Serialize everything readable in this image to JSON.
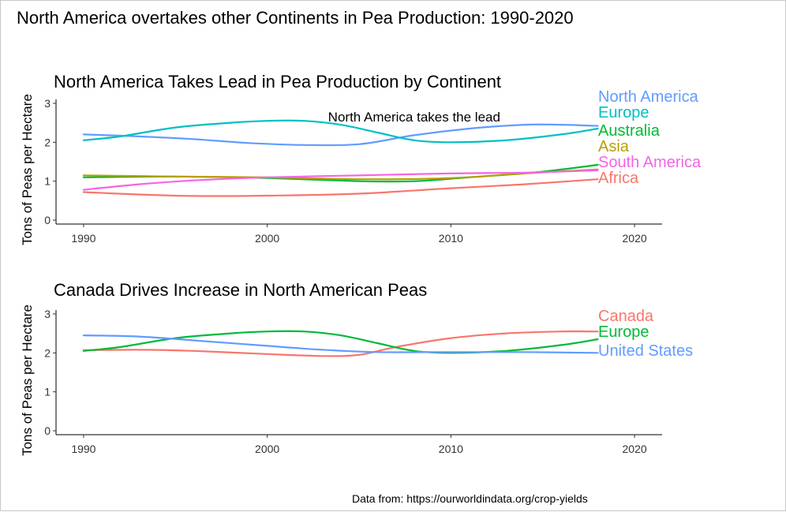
{
  "page": {
    "title": "North America overtakes other Continents in Pea Production: 1990-2020",
    "source": "Data from: https://ourworldindata.org/crop-yields"
  },
  "chart_data": [
    {
      "type": "line",
      "title": "North America Takes Lead in Pea Production by Continent",
      "ylabel": "Tons of Peas per Hectare",
      "xlabel": "",
      "xlim": [
        1988.5,
        2021.5
      ],
      "ylim": [
        -0.1,
        3.1
      ],
      "xticks": [
        1990,
        2000,
        2010,
        2020
      ],
      "yticks": [
        0,
        1,
        2,
        3
      ],
      "grid": false,
      "legend": "direct labels at line ends",
      "annotation": {
        "text": "North America takes the lead",
        "x": 2008,
        "y": 2.65
      },
      "series": [
        {
          "name": "North America",
          "color": "#619CFF",
          "x": [
            1990,
            1993,
            1996,
            1999,
            2002,
            2005,
            2008,
            2011,
            2014,
            2016,
            2018
          ],
          "y": [
            2.2,
            2.15,
            2.08,
            1.98,
            1.93,
            1.95,
            2.18,
            2.35,
            2.45,
            2.45,
            2.42
          ]
        },
        {
          "name": "Europe",
          "color": "#00BFC4",
          "x": [
            1990,
            1992,
            1995,
            1998,
            2000,
            2002,
            2004,
            2006,
            2008,
            2010,
            2013,
            2016,
            2018
          ],
          "y": [
            2.05,
            2.15,
            2.38,
            2.5,
            2.55,
            2.55,
            2.45,
            2.25,
            2.05,
            2.0,
            2.05,
            2.2,
            2.35
          ]
        },
        {
          "name": "Australia",
          "color": "#00BA38",
          "x": [
            1990,
            1995,
            2000,
            2005,
            2008,
            2011,
            2014,
            2016,
            2018
          ],
          "y": [
            1.1,
            1.12,
            1.08,
            1.0,
            1.0,
            1.1,
            1.2,
            1.3,
            1.42
          ]
        },
        {
          "name": "Asia",
          "color": "#B79F00",
          "x": [
            1990,
            1995,
            2000,
            2005,
            2010,
            2014,
            2018
          ],
          "y": [
            1.15,
            1.12,
            1.1,
            1.05,
            1.08,
            1.2,
            1.3
          ]
        },
        {
          "name": "South America",
          "color": "#F564E3",
          "x": [
            1990,
            1993,
            1996,
            2000,
            2005,
            2010,
            2014,
            2018
          ],
          "y": [
            0.78,
            0.92,
            1.02,
            1.1,
            1.15,
            1.2,
            1.22,
            1.28
          ]
        },
        {
          "name": "Africa",
          "color": "#F8766D",
          "x": [
            1990,
            1993,
            1996,
            2000,
            2005,
            2010,
            2014,
            2018
          ],
          "y": [
            0.72,
            0.66,
            0.62,
            0.63,
            0.68,
            0.82,
            0.92,
            1.05
          ]
        }
      ]
    },
    {
      "type": "line",
      "title": "Canada Drives Increase in North American Peas",
      "ylabel": "Tons of Peas per Hectare",
      "xlabel": "",
      "xlim": [
        1988.5,
        2021.5
      ],
      "ylim": [
        -0.1,
        3.1
      ],
      "xticks": [
        1990,
        2000,
        2010,
        2020
      ],
      "yticks": [
        0,
        1,
        2,
        3
      ],
      "grid": false,
      "legend": "direct labels at line ends",
      "series": [
        {
          "name": "Canada",
          "color": "#F8766D",
          "x": [
            1990,
            1993,
            1996,
            2000,
            2003,
            2005,
            2007,
            2010,
            2013,
            2016,
            2018
          ],
          "y": [
            2.07,
            2.08,
            2.05,
            1.97,
            1.92,
            1.95,
            2.15,
            2.38,
            2.5,
            2.55,
            2.55
          ]
        },
        {
          "name": "Europe",
          "color": "#00BA38",
          "x": [
            1990,
            1992,
            1995,
            1998,
            2000,
            2002,
            2004,
            2006,
            2008,
            2010,
            2013,
            2016,
            2018
          ],
          "y": [
            2.05,
            2.15,
            2.38,
            2.5,
            2.55,
            2.55,
            2.45,
            2.25,
            2.05,
            2.0,
            2.05,
            2.2,
            2.35
          ]
        },
        {
          "name": "United States",
          "color": "#619CFF",
          "x": [
            1990,
            1993,
            1996,
            2000,
            2003,
            2006,
            2010,
            2014,
            2018
          ],
          "y": [
            2.45,
            2.42,
            2.32,
            2.18,
            2.08,
            2.02,
            2.02,
            2.02,
            2.0
          ]
        }
      ]
    }
  ]
}
